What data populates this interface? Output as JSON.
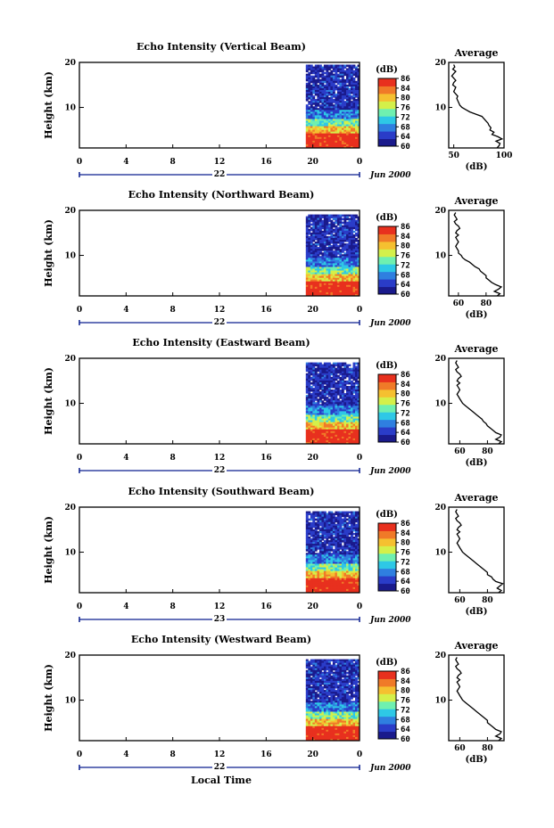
{
  "chart_data": [
    {
      "type": "heatmap",
      "title": "Echo Intensity (Vertical Beam)",
      "ylabel": "Height (km)",
      "y_ticks": [
        "20",
        "10"
      ],
      "ylim": [
        1,
        20
      ],
      "x_ticks": [
        "0",
        "4",
        "8",
        "12",
        "16",
        "20",
        "0"
      ],
      "xlim": [
        0,
        24
      ],
      "day_label": "22",
      "date_label": "Jun 2000",
      "data_start_hour": 19.4,
      "colorbar": {
        "unit": "(dB)",
        "labels": [
          "86",
          "84",
          "80",
          "76",
          "72",
          "68",
          "64",
          "60"
        ]
      },
      "average": {
        "title": "Average",
        "x_ticks": [
          "50",
          "100"
        ],
        "xlim": [
          45,
          100
        ],
        "xlabel": "(dB)",
        "y_ticks": [
          "20",
          "10"
        ],
        "heights": [
          1,
          1.5,
          2,
          2.5,
          3,
          3.5,
          4,
          4.5,
          5,
          5.5,
          6,
          6.5,
          7,
          7.5,
          8,
          8.5,
          9,
          9.5,
          10,
          10.5,
          11,
          11.5,
          12,
          12.5,
          13,
          13.5,
          14,
          14.5,
          15,
          15.5,
          16,
          16.5,
          17,
          17.5,
          18,
          18.5,
          19,
          19.5
        ],
        "values": [
          93,
          95,
          96,
          92,
          98,
          94,
          88,
          90,
          86,
          87,
          85,
          84,
          82,
          80,
          78,
          72,
          66,
          62,
          58,
          56,
          55,
          54,
          53,
          54,
          52,
          50,
          51,
          52,
          49,
          50,
          52,
          50,
          48,
          50,
          52,
          49,
          51,
          50
        ]
      }
    },
    {
      "type": "heatmap",
      "title": "Echo Intensity (Northward Beam)",
      "ylabel": "Height (km)",
      "y_ticks": [
        "20",
        "10"
      ],
      "ylim": [
        1,
        20
      ],
      "x_ticks": [
        "0",
        "4",
        "8",
        "12",
        "16",
        "20",
        "0"
      ],
      "xlim": [
        0,
        24
      ],
      "day_label": "22",
      "date_label": "Jun 2000",
      "data_start_hour": 19.4,
      "colorbar": {
        "unit": "(dB)",
        "labels": [
          "86",
          "84",
          "80",
          "76",
          "72",
          "68",
          "64",
          "60"
        ]
      },
      "average": {
        "title": "Average",
        "x_ticks": [
          "60",
          "80"
        ],
        "xlim": [
          53,
          93
        ],
        "xlabel": "(dB)",
        "y_ticks": [
          "20",
          "10"
        ],
        "heights": [
          1,
          1.5,
          2,
          2.5,
          3,
          3.5,
          4,
          4.5,
          5,
          5.5,
          6,
          6.5,
          7,
          7.5,
          8,
          8.5,
          9,
          9.5,
          10,
          10.5,
          11,
          11.5,
          12,
          12.5,
          13,
          13.5,
          14,
          14.5,
          15,
          15.5,
          16,
          16.5,
          17,
          17.5,
          18,
          18.5,
          19,
          19.5
        ],
        "values": [
          88,
          90,
          86,
          89,
          91,
          87,
          84,
          82,
          80,
          80,
          78,
          76,
          75,
          72,
          70,
          68,
          65,
          63,
          62,
          60,
          60,
          59,
          58,
          59,
          60,
          59,
          58,
          60,
          58,
          59,
          61,
          60,
          58,
          57,
          59,
          58,
          57,
          58
        ]
      }
    },
    {
      "type": "heatmap",
      "title": "Echo Intensity (Eastward Beam)",
      "ylabel": "Height (km)",
      "y_ticks": [
        "20",
        "10"
      ],
      "ylim": [
        1,
        20
      ],
      "x_ticks": [
        "0",
        "4",
        "8",
        "12",
        "16",
        "20",
        "0"
      ],
      "xlim": [
        0,
        24
      ],
      "day_label": "22",
      "date_label": "Jun 2000",
      "data_start_hour": 19.4,
      "colorbar": {
        "unit": "(dB)",
        "labels": [
          "86",
          "84",
          "80",
          "76",
          "72",
          "68",
          "64",
          "60"
        ]
      },
      "average": {
        "title": "Average",
        "x_ticks": [
          "60",
          "80"
        ],
        "xlim": [
          52,
          92
        ],
        "xlabel": "(dB)",
        "y_ticks": [
          "20",
          "10"
        ],
        "heights": [
          1,
          1.5,
          2,
          2.5,
          3,
          3.5,
          4,
          4.5,
          5,
          5.5,
          6,
          6.5,
          7,
          7.5,
          8,
          8.5,
          9,
          9.5,
          10,
          10.5,
          11,
          11.5,
          12,
          12.5,
          13,
          13.5,
          14,
          14.5,
          15,
          15.5,
          16,
          16.5,
          17,
          17.5,
          18,
          18.5,
          19,
          19.5
        ],
        "values": [
          88,
          90,
          86,
          89,
          90,
          86,
          84,
          82,
          80,
          79,
          77,
          76,
          74,
          72,
          70,
          68,
          66,
          64,
          62,
          61,
          60,
          59,
          58,
          59,
          60,
          59,
          58,
          60,
          58,
          59,
          61,
          60,
          58,
          57,
          59,
          58,
          57,
          58
        ]
      }
    },
    {
      "type": "heatmap",
      "title": "Echo Intensity (Southward Beam)",
      "ylabel": "Height (km)",
      "y_ticks": [
        "20",
        "10"
      ],
      "ylim": [
        1,
        20
      ],
      "x_ticks": [
        "0",
        "4",
        "8",
        "12",
        "16",
        "20",
        "0"
      ],
      "xlim": [
        0,
        24
      ],
      "day_label": "23",
      "date_label": "Jun 2000",
      "data_start_hour": 19.4,
      "colorbar": {
        "unit": "(dB)",
        "labels": [
          "86",
          "84",
          "80",
          "76",
          "72",
          "68",
          "64",
          "60"
        ]
      },
      "average": {
        "title": "Average",
        "x_ticks": [
          "60",
          "80"
        ],
        "xlim": [
          52,
          92
        ],
        "xlabel": "(dB)",
        "y_ticks": [
          "20",
          "10"
        ],
        "heights": [
          1,
          1.5,
          2,
          2.5,
          3,
          3.5,
          4,
          4.5,
          5,
          5.5,
          6,
          6.5,
          7,
          7.5,
          8,
          8.5,
          9,
          9.5,
          10,
          10.5,
          11,
          11.5,
          12,
          12.5,
          13,
          13.5,
          14,
          14.5,
          15,
          15.5,
          16,
          16.5,
          17,
          17.5,
          18,
          18.5,
          19,
          19.5
        ],
        "values": [
          88,
          90,
          87,
          89,
          91,
          86,
          84,
          83,
          80,
          80,
          78,
          76,
          74,
          72,
          70,
          68,
          66,
          64,
          62,
          61,
          60,
          59,
          58,
          59,
          60,
          59,
          58,
          60,
          58,
          59,
          61,
          60,
          58,
          57,
          59,
          58,
          57,
          58
        ]
      }
    },
    {
      "type": "heatmap",
      "title": "Echo Intensity (Westward Beam)",
      "ylabel": "Height (km)",
      "y_ticks": [
        "20",
        "10"
      ],
      "ylim": [
        1,
        20
      ],
      "x_ticks": [
        "0",
        "4",
        "8",
        "12",
        "16",
        "20",
        "0"
      ],
      "xlim": [
        0,
        24
      ],
      "day_label": "22",
      "date_label": "Jun 2000",
      "data_start_hour": 19.4,
      "colorbar": {
        "unit": "(dB)",
        "labels": [
          "86",
          "84",
          "80",
          "76",
          "72",
          "68",
          "64",
          "60"
        ]
      },
      "average": {
        "title": "Average",
        "x_ticks": [
          "60",
          "80"
        ],
        "xlim": [
          52,
          92
        ],
        "xlabel": "(dB)",
        "y_ticks": [
          "20",
          "10"
        ],
        "heights": [
          1,
          1.5,
          2,
          2.5,
          3,
          3.5,
          4,
          4.5,
          5,
          5.5,
          6,
          6.5,
          7,
          7.5,
          8,
          8.5,
          9,
          9.5,
          10,
          10.5,
          11,
          11.5,
          12,
          12.5,
          13,
          13.5,
          14,
          14.5,
          15,
          15.5,
          16,
          16.5,
          17,
          17.5,
          18,
          18.5,
          19,
          19.5
        ],
        "values": [
          88,
          90,
          86,
          89,
          90,
          86,
          84,
          82,
          80,
          80,
          78,
          76,
          74,
          72,
          70,
          68,
          66,
          64,
          62,
          61,
          60,
          59,
          58,
          59,
          60,
          59,
          58,
          60,
          58,
          59,
          61,
          60,
          58,
          57,
          59,
          58,
          57,
          58
        ]
      }
    }
  ],
  "footer": {
    "xlabel": "Local Time"
  },
  "colors": {
    "axis": "#000000",
    "date_axis": "#0b1f8f",
    "colormap": [
      "#1a1a8c",
      "#2a3cc8",
      "#2f7fe0",
      "#2ec8e6",
      "#6ff0b0",
      "#d4f04a",
      "#f5c030",
      "#f07a28",
      "#e8301e"
    ]
  }
}
